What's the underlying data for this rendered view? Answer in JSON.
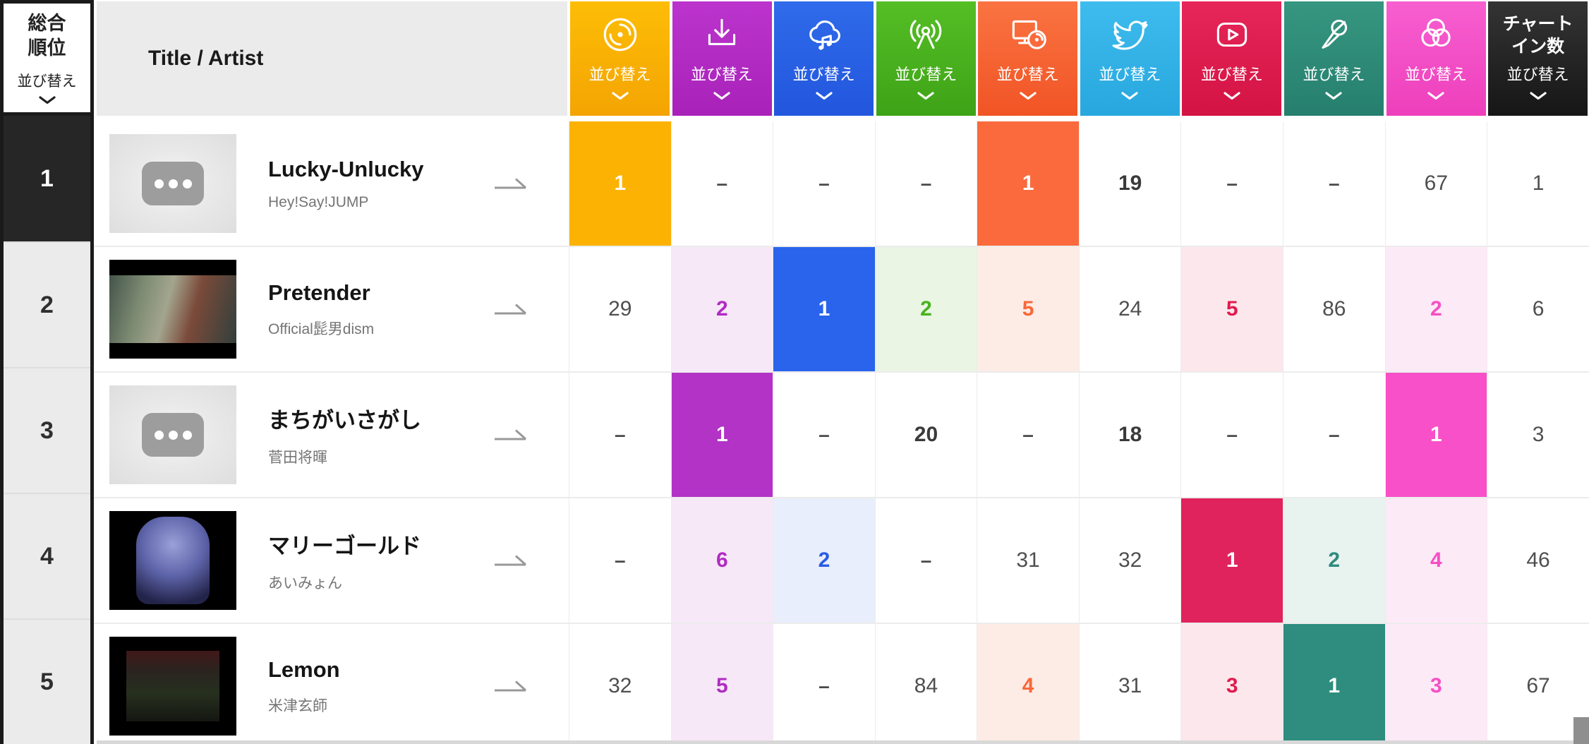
{
  "rank_header": {
    "line1": "総合",
    "line2": "順位",
    "sort_label": "並び替え"
  },
  "title_header": {
    "label": "Title / Artist"
  },
  "columns": [
    {
      "id": "cd",
      "icon": "cd-disc-icon",
      "sort_label": "並び替え",
      "color": "#fcb203",
      "top": "#fdbd06",
      "bottom": "#f4a402",
      "text": "#f5a301",
      "tint": "#fef2da"
    },
    {
      "id": "download",
      "icon": "download-icon",
      "sort_label": "並び替え",
      "color": "#b233c6",
      "top": "#bb34cd",
      "bottom": "#a822b9",
      "text": "#b02cc2",
      "tint": "#f7e8f8"
    },
    {
      "id": "streaming",
      "icon": "cloud-music-icon",
      "sort_label": "並び替え",
      "color": "#2a64ec",
      "top": "#2f6bea",
      "bottom": "#2256dd",
      "text": "#2a5ce4",
      "tint": "#e8eefb"
    },
    {
      "id": "radio",
      "icon": "radio-tower-icon",
      "sort_label": "並び替え",
      "color": "#49b31c",
      "top": "#55be25",
      "bottom": "#3ea317",
      "text": "#49b31c",
      "tint": "#eaf5e3"
    },
    {
      "id": "lookup",
      "icon": "pc-lookup-icon",
      "sort_label": "並び替え",
      "color": "#fa6a3c",
      "top": "#fa7342",
      "bottom": "#f15425",
      "text": "#f9683a",
      "tint": "#fdece5"
    },
    {
      "id": "twitter",
      "icon": "twitter-bird-icon",
      "sort_label": "並び替え",
      "color": "#35b5ea",
      "top": "#3fbcee",
      "bottom": "#27a7de",
      "text": "#2aa3d8",
      "tint": "#e5f5fc"
    },
    {
      "id": "video",
      "icon": "video-play-icon",
      "sort_label": "並び替え",
      "color": "#e0235c",
      "top": "#e72659",
      "bottom": "#d31343",
      "text": "#e01b4f",
      "tint": "#fce7ec"
    },
    {
      "id": "karaoke",
      "icon": "karaoke-mic-icon",
      "sort_label": "並び替え",
      "color": "#2e8d7e",
      "top": "#369680",
      "bottom": "#267f6e",
      "text": "#2e8b7c",
      "tint": "#e8f2ef"
    },
    {
      "id": "circles",
      "icon": "overlap-circles-icon",
      "sort_label": "並び替え",
      "color": "#f850c8",
      "top": "#f75fd0",
      "bottom": "#ee3fbc",
      "text": "#f64fc6",
      "tint": "#fdeaf7"
    },
    {
      "id": "chartin",
      "icon": null,
      "label_line1": "チャート",
      "label_line2": "イン数",
      "sort_label": "並び替え",
      "color": "#262626",
      "top": "#343434",
      "bottom": "#161616",
      "text": "#262626",
      "tint": "#eeeeee"
    }
  ],
  "rows": [
    {
      "rank": "1",
      "rank_style": "dark",
      "thumb": "placeholder",
      "title": "Lucky-Unlucky",
      "artist": "Hey!Say!JUMP",
      "cells": [
        {
          "v": "1",
          "s": "solid"
        },
        {
          "v": "–",
          "s": "dash"
        },
        {
          "v": "–",
          "s": "dash"
        },
        {
          "v": "–",
          "s": "dash"
        },
        {
          "v": "1",
          "s": "solid"
        },
        {
          "v": "19",
          "s": "emph"
        },
        {
          "v": "–",
          "s": "dash"
        },
        {
          "v": "–",
          "s": "dash"
        },
        {
          "v": "67",
          "s": "plain"
        },
        {
          "v": "1",
          "s": "plain"
        }
      ]
    },
    {
      "rank": "2",
      "rank_style": "gray",
      "thumb": "photo-pretender",
      "title": "Pretender",
      "artist": "Official髭男dism",
      "cells": [
        {
          "v": "29",
          "s": "plain"
        },
        {
          "v": "2",
          "s": "tint"
        },
        {
          "v": "1",
          "s": "solid"
        },
        {
          "v": "2",
          "s": "tint"
        },
        {
          "v": "5",
          "s": "tint"
        },
        {
          "v": "24",
          "s": "plain"
        },
        {
          "v": "5",
          "s": "tint"
        },
        {
          "v": "86",
          "s": "plain"
        },
        {
          "v": "2",
          "s": "tint"
        },
        {
          "v": "6",
          "s": "plain"
        }
      ]
    },
    {
      "rank": "3",
      "rank_style": "gray",
      "thumb": "placeholder",
      "title": "まちがいさがし",
      "artist": "菅田将暉",
      "cells": [
        {
          "v": "–",
          "s": "dash"
        },
        {
          "v": "1",
          "s": "solid"
        },
        {
          "v": "–",
          "s": "dash"
        },
        {
          "v": "20",
          "s": "emph"
        },
        {
          "v": "–",
          "s": "dash"
        },
        {
          "v": "18",
          "s": "emph"
        },
        {
          "v": "–",
          "s": "dash"
        },
        {
          "v": "–",
          "s": "dash"
        },
        {
          "v": "1",
          "s": "solid"
        },
        {
          "v": "3",
          "s": "plain"
        }
      ]
    },
    {
      "rank": "4",
      "rank_style": "gray",
      "thumb": "photo-marigold",
      "title": "マリーゴールド",
      "artist": "あいみょん",
      "cells": [
        {
          "v": "–",
          "s": "dash"
        },
        {
          "v": "6",
          "s": "tint"
        },
        {
          "v": "2",
          "s": "tint"
        },
        {
          "v": "–",
          "s": "dash"
        },
        {
          "v": "31",
          "s": "plain"
        },
        {
          "v": "32",
          "s": "plain"
        },
        {
          "v": "1",
          "s": "solid"
        },
        {
          "v": "2",
          "s": "tint"
        },
        {
          "v": "4",
          "s": "tint"
        },
        {
          "v": "46",
          "s": "plain"
        }
      ]
    },
    {
      "rank": "5",
      "rank_style": "gray",
      "thumb": "photo-lemon",
      "title": "Lemon",
      "artist": "米津玄師",
      "cells": [
        {
          "v": "32",
          "s": "plain"
        },
        {
          "v": "5",
          "s": "tint"
        },
        {
          "v": "–",
          "s": "dash"
        },
        {
          "v": "84",
          "s": "plain"
        },
        {
          "v": "4",
          "s": "tint"
        },
        {
          "v": "31",
          "s": "plain"
        },
        {
          "v": "3",
          "s": "tint"
        },
        {
          "v": "1",
          "s": "solid"
        },
        {
          "v": "3",
          "s": "tint"
        },
        {
          "v": "67",
          "s": "plain"
        }
      ]
    }
  ]
}
